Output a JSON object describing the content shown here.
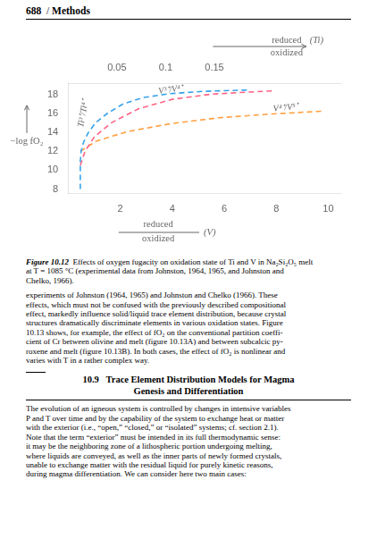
{
  "chart_data": {
    "type": "line",
    "series": [
      {
        "x": [
          0.47,
          0.47,
          0.47,
          0.47,
          0.5,
          0.6,
          0.78,
          1.05,
          1.5,
          2.1,
          2.9,
          3.9,
          5.2,
          7.0
        ],
        "values": [
          8.0,
          9.0,
          10.0,
          11.0,
          12.0,
          13.0,
          14.0,
          15.0,
          16.0,
          17.0,
          17.7,
          18.1,
          18.35,
          18.5
        ]
      },
      {
        "x": [
          0.47,
          0.65,
          1.0,
          1.65,
          2.7,
          4.0,
          5.5,
          6.8,
          7.5,
          7.9
        ],
        "values": [
          10.5,
          12.0,
          13.5,
          15.0,
          16.5,
          17.5,
          18.05,
          18.25,
          18.35,
          18.4
        ]
      },
      {
        "x": [
          0.47,
          1.1,
          2.3,
          4.0,
          5.8,
          7.8,
          9.8
        ],
        "values": [
          12.0,
          13.1,
          14.1,
          14.95,
          15.55,
          15.95,
          16.25
        ]
      }
    ],
    "line_style": "dashed",
    "marker": "none",
    "grid": false,
    "xlim": [
      0,
      10.5
    ],
    "xticks": [
      2,
      4,
      6,
      8,
      10
    ],
    "ylim": [
      7.5,
      19.2
    ],
    "yticks": [
      8,
      10,
      12,
      14,
      16,
      18
    ],
    "x2lim": [
      0,
      0.28
    ],
    "x2ticks": [
      0.05,
      0.1,
      0.15
    ],
    "ylabel": "−log fO₂",
    "xlabel": {
      "numerator": "reduced",
      "denominator": "oxidized",
      "element": "(V)"
    },
    "x2label": {
      "numerator": "reduced",
      "denominator": "oxidized",
      "element": "(Ti)"
    },
    "annotations": [
      {
        "text": "Ti³⁺/Ti⁴⁺",
        "x": 0.75,
        "y": 15.9
      },
      {
        "text": "V³⁺/V⁴⁺",
        "x": 3.5,
        "y": 17.85
      },
      {
        "text": "V⁴⁺/V⁵⁺",
        "x": 7.9,
        "y": 16.02
      }
    ]
  },
  "header": {
    "number": "688",
    "divider": "/",
    "section": "Methods"
  },
  "caption": {
    "label": "Figure 10.12",
    "lines": [
      "  Effects of oxygen fugacity on oxidation state of Ti and V in Na₂Si₂O₅ melt",
      "at T = 1085 °C (experimental data from Johnston, 1964, 1965, and Johnston and",
      "Chelko, 1966)."
    ]
  },
  "paragraph1": [
    "experiments of Johnston (1964, 1965) and Johnston and Chelko (1966). These",
    "effects, which must not be confused with the previously described compositional",
    "effect, markedly influence solid/liquid trace element distribution, because crystal",
    "structures dramatically discriminate elements in various oxidation states. Figure",
    "10.13 shows, for example, the effect of fO₂ on the conventional partition coeffi-",
    "cient of Cr between olivine and melt (figure 10.13A) and between subcalcic py-",
    "roxene and melt (figure 10.13B). In both cases, the effect of fO₂ is nonlinear and",
    "varies with T in a rather complex way."
  ],
  "section_title": [
    "10.9   Trace Element Distribution Models for Magma",
    "Genesis and Differentiation"
  ],
  "paragraph2": [
    "The evolution of an igneous system is controlled by changes in intensive variables",
    "P and T over time and by the capability of the system to exchange heat or matter",
    "with the exterior (i.e., “open,” “closed,” or “isolated” systems; cf. section 2.1).",
    "Note that the term “exterior” must be intended in its full thermodynamic sense:",
    "it may be the neighboring zone of a lithospheric portion undergoing melting,",
    "where liquids are conveyed, as well as the inner parts of newly formed crystals,",
    "unable to exchange matter with the residual liquid for purely kinetic reasons,",
    "during magma differentiation. We can consider here two main cases:"
  ]
}
